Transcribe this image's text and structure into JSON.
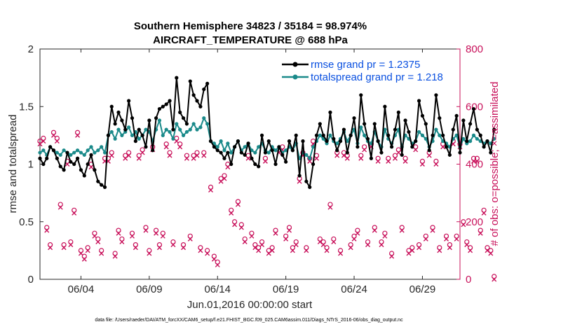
{
  "chart_data": {
    "type": "line",
    "title_line1": "Southern Hemisphere 34823 / 35184 = 98.974%",
    "title_line2": "AIRCRAFT_TEMPERATURE @ 688 hPa",
    "xlabel": "Jun.01,2016 00:00:00 start",
    "ylabel": "rmse and totalspread",
    "ylabel_right": "# of obs: o=possible; ×=assimilated",
    "footer": "data file: /Users/raeder/DAI/ATM_forcXX/CAM6_setup/f.e21.FHIST_BGC.f09_025.CAM6assim.011/Diags_NTrS_2016-06/obs_diag_output.nc",
    "xlim": [
      1,
      31.75
    ],
    "ylim": [
      0,
      2
    ],
    "ylim_right": [
      0,
      800
    ],
    "x_ticks": [
      4,
      9,
      14,
      19,
      24,
      29
    ],
    "x_tick_labels": [
      "06/04",
      "06/09",
      "06/14",
      "06/19",
      "06/24",
      "06/29"
    ],
    "y_ticks": [
      0,
      0.5,
      1,
      1.5,
      2
    ],
    "y_tick_labels": [
      "0",
      "0.5",
      "1",
      "1.5",
      "2"
    ],
    "y_right_ticks": [
      0,
      200,
      400,
      600,
      800
    ],
    "y_right_tick_labels": [
      "0",
      "200",
      "400",
      "600",
      "800"
    ],
    "x_start": 1.0,
    "x_step": 0.25,
    "series": [
      {
        "name": "rmse",
        "legend": "rmse grand pr = 1.2375",
        "color": "#000000",
        "values": [
          1.05,
          1.0,
          1.05,
          1.15,
          1.12,
          1.05,
          0.98,
          0.95,
          1.1,
          1.02,
          1.0,
          1.05,
          0.95,
          0.9,
          1.0,
          1.08,
          0.95,
          0.85,
          0.82,
          0.8,
          1.25,
          1.5,
          1.35,
          1.45,
          1.38,
          1.3,
          1.55,
          1.4,
          1.2,
          1.3,
          1.25,
          1.15,
          1.38,
          1.12,
          1.4,
          1.48,
          1.5,
          1.52,
          1.55,
          1.3,
          1.75,
          1.45,
          1.4,
          1.35,
          1.72,
          1.6,
          1.55,
          1.5,
          1.65,
          1.7,
          1.2,
          1.15,
          1.12,
          1.1,
          1.05,
          1.1,
          1.0,
          1.15,
          1.2,
          1.1,
          1.08,
          1.18,
          1.05,
          1.0,
          0.98,
          1.25,
          1.1,
          1.2,
          1.12,
          1.0,
          1.15,
          1.08,
          1.02,
          1.2,
          1.12,
          1.25,
          0.9,
          1.2,
          0.85,
          0.8,
          1.0,
          1.25,
          1.35,
          1.25,
          1.2,
          1.45,
          1.22,
          1.12,
          1.2,
          1.3,
          1.1,
          1.25,
          1.4,
          1.15,
          1.6,
          1.35,
          1.22,
          1.05,
          1.35,
          1.2,
          1.1,
          1.5,
          1.25,
          1.15,
          1.3,
          1.45,
          1.08,
          1.38,
          1.28,
          1.15,
          1.2,
          1.55,
          1.42,
          1.35,
          1.12,
          1.25,
          1.6,
          1.4,
          1.25,
          1.15,
          1.08,
          1.3,
          1.42,
          1.1,
          1.38,
          1.2,
          1.35,
          1.48,
          1.3,
          1.25,
          1.15,
          1.2,
          1.1,
          1.3
        ]
      },
      {
        "name": "totalspread",
        "legend": "totalspread grand pr = 1.218",
        "color": "#1a8a8a",
        "values": [
          1.1,
          1.12,
          1.08,
          1.15,
          1.12,
          1.1,
          1.08,
          1.12,
          1.1,
          1.08,
          1.1,
          1.12,
          1.1,
          1.08,
          1.12,
          1.15,
          1.1,
          1.12,
          1.15,
          1.1,
          1.25,
          1.28,
          1.22,
          1.3,
          1.25,
          1.28,
          1.32,
          1.25,
          1.28,
          1.22,
          1.25,
          1.3,
          1.28,
          1.2,
          1.3,
          1.38,
          1.25,
          1.3,
          1.28,
          1.22,
          1.35,
          1.3,
          1.25,
          1.28,
          1.3,
          1.35,
          1.3,
          1.32,
          1.4,
          1.35,
          1.2,
          1.18,
          1.15,
          1.2,
          1.12,
          1.18,
          1.1,
          1.15,
          1.2,
          1.12,
          1.15,
          1.18,
          1.12,
          1.1,
          1.15,
          1.18,
          1.12,
          1.1,
          1.15,
          1.12,
          1.15,
          1.1,
          1.12,
          1.15,
          1.12,
          1.18,
          1.05,
          1.1,
          1.08,
          1.05,
          1.15,
          1.2,
          1.25,
          1.22,
          1.18,
          1.25,
          1.2,
          1.18,
          1.22,
          1.28,
          1.2,
          1.25,
          1.3,
          1.18,
          1.32,
          1.25,
          1.2,
          1.18,
          1.28,
          1.2,
          1.15,
          1.3,
          1.22,
          1.18,
          1.25,
          1.3,
          1.15,
          1.25,
          1.22,
          1.18,
          1.2,
          1.28,
          1.25,
          1.22,
          1.15,
          1.2,
          1.3,
          1.25,
          1.2,
          1.18,
          1.15,
          1.22,
          1.25,
          1.15,
          1.22,
          1.18,
          1.2,
          1.25,
          1.22,
          1.2,
          1.18,
          1.2,
          1.18,
          1.22
        ]
      },
      {
        "name": "obs_possible",
        "marker": "o",
        "color": "#c8105a",
        "values": [
          480,
          490,
          180,
          120,
          510,
          490,
          260,
          120,
          410,
          130,
          240,
          510,
          100,
          80,
          110,
          400,
          160,
          140,
          100,
          420,
          420,
          440,
          90,
          170,
          140,
          430,
          440,
          160,
          120,
          430,
          450,
          180,
          100,
          460,
          170,
          120,
          160,
          470,
          440,
          130,
          490,
          470,
          120,
          430,
          150,
          430,
          440,
          110,
          440,
          100,
          320,
          80,
          60,
          350,
          360,
          400,
          240,
          200,
          270,
          190,
          140,
          430,
          160,
          120,
          110,
          130,
          420,
          100,
          110,
          170,
          450,
          460,
          150,
          180,
          110,
          130,
          350,
          440,
          110,
          420,
          480,
          430,
          140,
          130,
          110,
          260,
          140,
          440,
          100,
          440,
          430,
          120,
          150,
          170,
          430,
          460,
          130,
          470,
          180,
          420,
          130,
          160,
          420,
          90,
          430,
          450,
          180,
          420,
          100,
          110,
          460,
          120,
          410,
          150,
          440,
          180,
          410,
          110,
          470,
          150,
          120,
          480,
          150,
          470,
          200,
          130,
          110,
          420,
          420,
          170,
          240,
          110,
          100,
          10
        ]
      },
      {
        "name": "obs_assimilated",
        "marker": "x",
        "color": "#c8105a",
        "values": [
          470,
          480,
          170,
          110,
          500,
          480,
          250,
          110,
          400,
          120,
          230,
          500,
          90,
          70,
          100,
          390,
          150,
          130,
          90,
          410,
          410,
          430,
          80,
          160,
          130,
          420,
          430,
          150,
          110,
          420,
          440,
          170,
          90,
          450,
          160,
          110,
          150,
          460,
          430,
          120,
          480,
          460,
          110,
          420,
          140,
          420,
          430,
          100,
          430,
          90,
          310,
          70,
          50,
          340,
          350,
          390,
          230,
          190,
          260,
          180,
          130,
          420,
          150,
          110,
          100,
          120,
          410,
          90,
          100,
          160,
          440,
          450,
          140,
          170,
          100,
          120,
          340,
          430,
          100,
          410,
          470,
          420,
          130,
          120,
          100,
          250,
          130,
          430,
          90,
          430,
          420,
          110,
          140,
          160,
          420,
          450,
          120,
          460,
          170,
          410,
          120,
          150,
          410,
          80,
          420,
          440,
          170,
          410,
          90,
          100,
          450,
          110,
          400,
          140,
          430,
          170,
          400,
          100,
          460,
          140,
          110,
          470,
          140,
          460,
          190,
          120,
          100,
          410,
          410,
          160,
          230,
          100,
          90,
          0
        ]
      }
    ]
  }
}
